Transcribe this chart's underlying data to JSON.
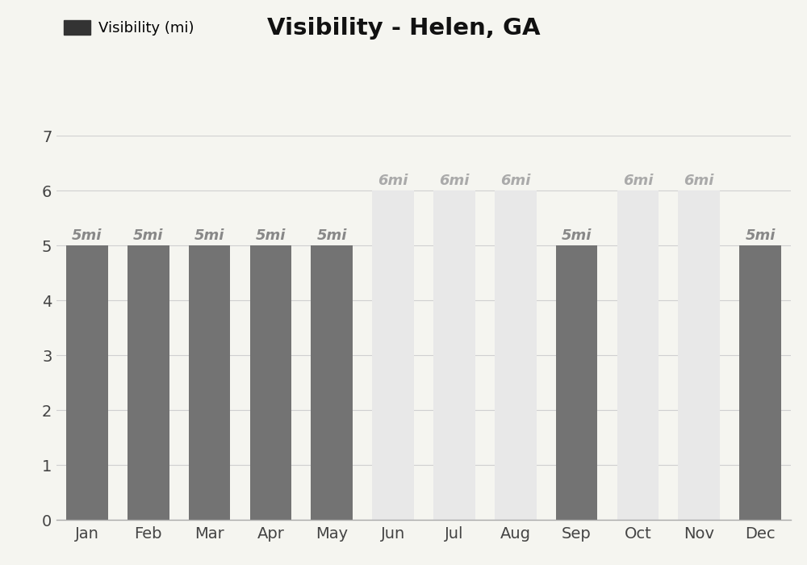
{
  "title": "Visibility - Helen, GA",
  "legend_label": "Visibility (mi)",
  "months": [
    "Jan",
    "Feb",
    "Mar",
    "Apr",
    "May",
    "Jun",
    "Jul",
    "Aug",
    "Sep",
    "Oct",
    "Nov",
    "Dec"
  ],
  "values": [
    5,
    5,
    5,
    5,
    5,
    6,
    6,
    6,
    5,
    6,
    6,
    5
  ],
  "bar_colors": [
    "#737373",
    "#737373",
    "#737373",
    "#737373",
    "#737373",
    "#e8e8e8",
    "#e8e8e8",
    "#e8e8e8",
    "#737373",
    "#e8e8e8",
    "#e8e8e8",
    "#737373"
  ],
  "label_colors_dark": "#888888",
  "label_colors_light": "#aaaaaa",
  "label_dark_months": [
    0,
    1,
    2,
    3,
    4,
    8,
    11
  ],
  "ylim": [
    0,
    7
  ],
  "yticks": [
    0,
    1,
    2,
    3,
    4,
    5,
    6,
    7
  ],
  "background_color": "#f5f5f0",
  "grid_color": "#d0d0d0",
  "title_fontsize": 21,
  "legend_fontsize": 13,
  "tick_fontsize": 14,
  "bar_label_fontsize": 13,
  "legend_patch_color": "#333333"
}
